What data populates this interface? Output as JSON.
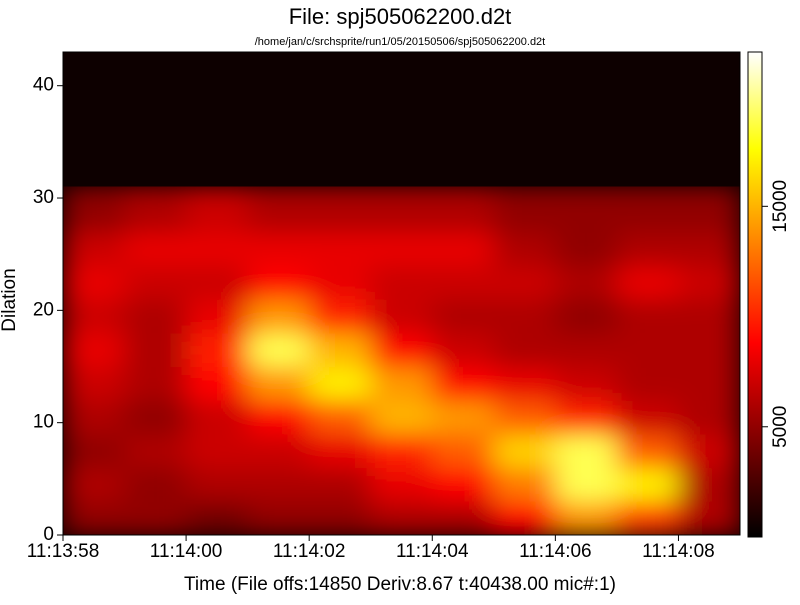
{
  "chart_data": {
    "type": "heatmap",
    "title": "File: spj505062200.d2t",
    "subtitle": "/home/jan/c/srchsprite/run1/05/20150506/spj505062200.d2t",
    "x_label": "Time (File offs:14850 Deriv:8.67 t:40438.00 mic#:1)",
    "y_label": "Dilation",
    "x_bins": [
      40438,
      40439,
      40440,
      40441,
      40442,
      40443,
      40444,
      40445,
      40446,
      40447,
      40448,
      40449
    ],
    "y_bins": [
      0,
      3,
      6,
      9,
      12,
      15,
      18,
      21,
      24,
      27,
      31
    ],
    "z": [
      [
        5000,
        5000,
        4000,
        5000,
        5000,
        6000,
        6000,
        9000,
        14000,
        11000,
        6000
      ],
      [
        6000,
        5000,
        6000,
        6000,
        6000,
        8000,
        9000,
        13000,
        19000,
        17000,
        6000
      ],
      [
        5000,
        6000,
        7000,
        7000,
        8000,
        10000,
        12000,
        16000,
        19000,
        12000,
        7000
      ],
      [
        6000,
        5000,
        7000,
        9000,
        12000,
        15000,
        14000,
        12000,
        10000,
        7000,
        6000
      ],
      [
        7000,
        6000,
        9000,
        14000,
        17000,
        14000,
        9000,
        8000,
        7000,
        6000,
        6000
      ],
      [
        8000,
        6000,
        10000,
        19000,
        15000,
        9000,
        7000,
        6000,
        6000,
        6000,
        6000
      ],
      [
        7000,
        6000,
        8000,
        14000,
        10000,
        7000,
        6000,
        6000,
        5000,
        6000,
        6000
      ],
      [
        8000,
        7000,
        7000,
        9000,
        8000,
        7000,
        7000,
        7000,
        6000,
        8000,
        7000
      ],
      [
        7000,
        8000,
        8000,
        8000,
        8000,
        8000,
        8000,
        6000,
        5000,
        6000,
        6000
      ],
      [
        5000,
        6000,
        7000,
        6000,
        6000,
        6000,
        6000,
        5000,
        5000,
        5000,
        5000
      ]
    ],
    "colormap": "hot",
    "xlim": [
      40438,
      40449
    ],
    "xticks": [
      {
        "value": 40438,
        "label": "11:13:58"
      },
      {
        "value": 40440,
        "label": "11:14:00"
      },
      {
        "value": 40442,
        "label": "11:14:02"
      },
      {
        "value": 40444,
        "label": "11:14:04"
      },
      {
        "value": 40446,
        "label": "11:14:06"
      },
      {
        "value": 40448,
        "label": "11:14:08"
      }
    ],
    "ylim": [
      0,
      43
    ],
    "yticks": [
      0,
      10,
      20,
      30,
      40
    ],
    "zlim": [
      0,
      22000
    ],
    "zticks": [
      5000,
      15000
    ]
  }
}
